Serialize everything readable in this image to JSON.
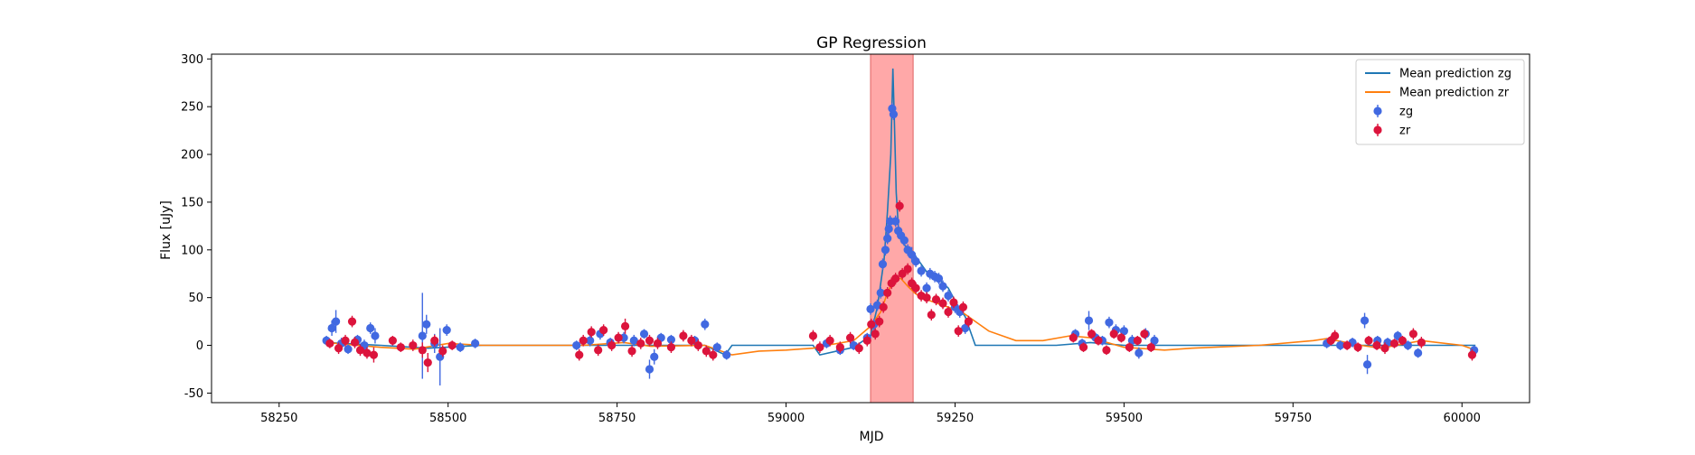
{
  "chart_data": {
    "type": "scatter",
    "title": "GP Regression",
    "xlabel": "MJD",
    "ylabel": "Flux [uJy]",
    "xlim": [
      58150,
      60100
    ],
    "ylim": [
      -60,
      305
    ],
    "xticks": [
      58250,
      58500,
      58750,
      59000,
      59250,
      59500,
      59750,
      60000
    ],
    "yticks": [
      -50,
      0,
      50,
      100,
      150,
      200,
      250,
      300
    ],
    "grid": false,
    "legend_position": "top-right",
    "shaded_region": {
      "x0": 59125,
      "x1": 59188,
      "color": "#ff9999"
    },
    "legend": [
      {
        "label": "Mean prediction zg",
        "kind": "line",
        "color": "#1f77b4"
      },
      {
        "label": "Mean prediction zr",
        "kind": "line",
        "color": "#ff7f0e"
      },
      {
        "label": "zg",
        "kind": "errorbar",
        "color": "#4169e1"
      },
      {
        "label": "zr",
        "kind": "errorbar",
        "color": "#dc143c"
      }
    ],
    "series": [
      {
        "name": "Mean prediction zg",
        "kind": "line",
        "color": "#1f77b4",
        "x": [
          58320,
          58400,
          58470,
          58550,
          58700,
          58800,
          58880,
          58910,
          58920,
          59000,
          59040,
          59050,
          59100,
          59125,
          59135,
          59145,
          59150,
          59155,
          59158,
          59160,
          59163,
          59166,
          59170,
          59175,
          59185,
          59195,
          59210,
          59225,
          59240,
          59255,
          59265,
          59275,
          59280,
          59290,
          59300,
          59400,
          59450,
          59500,
          59550,
          59600,
          59800,
          59900,
          60020
        ],
        "y": [
          3,
          0,
          -3,
          0,
          0,
          0,
          0,
          -10,
          0,
          0,
          0,
          -10,
          -2,
          10,
          40,
          90,
          140,
          200,
          290,
          240,
          160,
          125,
          110,
          105,
          100,
          90,
          75,
          70,
          60,
          40,
          30,
          10,
          0,
          0,
          0,
          0,
          3,
          0,
          0,
          0,
          0,
          0,
          0
        ]
      },
      {
        "name": "Mean prediction zr",
        "kind": "line",
        "color": "#ff7f0e",
        "x": [
          58320,
          58400,
          58450,
          58500,
          58550,
          58700,
          58760,
          58800,
          58880,
          58920,
          58960,
          59000,
          59040,
          59060,
          59100,
          59125,
          59140,
          59150,
          59160,
          59170,
          59180,
          59190,
          59200,
          59220,
          59240,
          59260,
          59280,
          59300,
          59340,
          59380,
          59420,
          59450,
          59500,
          59560,
          59600,
          59700,
          59780,
          59800,
          59850,
          59880,
          59940,
          60000,
          60020
        ],
        "y": [
          3,
          -2,
          -4,
          2,
          0,
          0,
          3,
          -1,
          0,
          -10,
          -6,
          -5,
          -3,
          0,
          5,
          20,
          35,
          55,
          70,
          70,
          62,
          55,
          50,
          45,
          40,
          35,
          25,
          15,
          5,
          5,
          10,
          8,
          -2,
          -5,
          -3,
          0,
          5,
          7,
          0,
          -3,
          5,
          0,
          -5
        ]
      },
      {
        "name": "zg",
        "kind": "errorbar",
        "color": "#4169e1",
        "points": [
          [
            58320,
            5,
            5
          ],
          [
            58328,
            18,
            8
          ],
          [
            58334,
            25,
            12
          ],
          [
            58342,
            2,
            6
          ],
          [
            58352,
            -4,
            5
          ],
          [
            58366,
            6,
            5
          ],
          [
            58376,
            0,
            6
          ],
          [
            58385,
            18,
            6
          ],
          [
            58392,
            10,
            8
          ],
          [
            58462,
            10,
            45
          ],
          [
            58468,
            22,
            10
          ],
          [
            58480,
            2,
            10
          ],
          [
            58488,
            -12,
            30
          ],
          [
            58498,
            16,
            6
          ],
          [
            58518,
            -2,
            5
          ],
          [
            58540,
            2,
            5
          ],
          [
            58690,
            0,
            5
          ],
          [
            58710,
            5,
            6
          ],
          [
            58725,
            12,
            6
          ],
          [
            58740,
            3,
            5
          ],
          [
            58760,
            8,
            6
          ],
          [
            58775,
            5,
            6
          ],
          [
            58790,
            12,
            5
          ],
          [
            58798,
            -25,
            10
          ],
          [
            58805,
            -12,
            8
          ],
          [
            58815,
            8,
            5
          ],
          [
            58830,
            6,
            5
          ],
          [
            58865,
            5,
            5
          ],
          [
            58880,
            22,
            6
          ],
          [
            58898,
            -2,
            5
          ],
          [
            58912,
            -10,
            5
          ],
          [
            59060,
            2,
            5
          ],
          [
            59080,
            -5,
            5
          ],
          [
            59100,
            0,
            5
          ],
          [
            59120,
            8,
            5
          ],
          [
            59125,
            38,
            6
          ],
          [
            59130,
            22,
            6
          ],
          [
            59135,
            42,
            6
          ],
          [
            59140,
            55,
            6
          ],
          [
            59143,
            85,
            6
          ],
          [
            59147,
            100,
            6
          ],
          [
            59150,
            112,
            6
          ],
          [
            59152,
            122,
            6
          ],
          [
            59154,
            130,
            6
          ],
          [
            59157,
            248,
            6
          ],
          [
            59159,
            242,
            6
          ],
          [
            59162,
            130,
            6
          ],
          [
            59166,
            120,
            6
          ],
          [
            59170,
            115,
            6
          ],
          [
            59175,
            110,
            6
          ],
          [
            59180,
            100,
            6
          ],
          [
            59186,
            95,
            8
          ],
          [
            59192,
            88,
            6
          ],
          [
            59200,
            78,
            6
          ],
          [
            59208,
            60,
            6
          ],
          [
            59213,
            75,
            6
          ],
          [
            59220,
            72,
            6
          ],
          [
            59226,
            70,
            6
          ],
          [
            59232,
            62,
            6
          ],
          [
            59240,
            52,
            6
          ],
          [
            59250,
            40,
            6
          ],
          [
            59257,
            35,
            6
          ],
          [
            59265,
            18,
            6
          ],
          [
            59428,
            12,
            5
          ],
          [
            59438,
            2,
            5
          ],
          [
            59448,
            26,
            10
          ],
          [
            59458,
            8,
            5
          ],
          [
            59468,
            5,
            5
          ],
          [
            59478,
            24,
            6
          ],
          [
            59488,
            16,
            6
          ],
          [
            59500,
            15,
            6
          ],
          [
            59512,
            5,
            6
          ],
          [
            59522,
            -8,
            6
          ],
          [
            59532,
            12,
            6
          ],
          [
            59545,
            5,
            6
          ],
          [
            59800,
            2,
            5
          ],
          [
            59820,
            0,
            5
          ],
          [
            59838,
            3,
            5
          ],
          [
            59856,
            26,
            8
          ],
          [
            59860,
            -20,
            10
          ],
          [
            59875,
            5,
            5
          ],
          [
            59890,
            3,
            5
          ],
          [
            59905,
            10,
            5
          ],
          [
            59920,
            0,
            5
          ],
          [
            59935,
            -8,
            5
          ],
          [
            60018,
            -5,
            5
          ]
        ]
      },
      {
        "name": "zr",
        "kind": "errorbar",
        "color": "#dc143c",
        "points": [
          [
            58325,
            2,
            5
          ],
          [
            58338,
            -3,
            6
          ],
          [
            58348,
            5,
            6
          ],
          [
            58358,
            25,
            6
          ],
          [
            58362,
            3,
            6
          ],
          [
            58370,
            -5,
            6
          ],
          [
            58380,
            -8,
            6
          ],
          [
            58390,
            -10,
            8
          ],
          [
            58418,
            5,
            5
          ],
          [
            58430,
            -2,
            5
          ],
          [
            58448,
            0,
            6
          ],
          [
            58462,
            -5,
            8
          ],
          [
            58470,
            -18,
            10
          ],
          [
            58480,
            5,
            6
          ],
          [
            58492,
            -6,
            6
          ],
          [
            58506,
            0,
            5
          ],
          [
            58694,
            -10,
            6
          ],
          [
            58700,
            5,
            6
          ],
          [
            58712,
            14,
            6
          ],
          [
            58722,
            -5,
            6
          ],
          [
            58730,
            16,
            6
          ],
          [
            58742,
            0,
            6
          ],
          [
            58752,
            8,
            6
          ],
          [
            58762,
            20,
            8
          ],
          [
            58772,
            -6,
            6
          ],
          [
            58785,
            2,
            6
          ],
          [
            58798,
            5,
            6
          ],
          [
            58810,
            2,
            6
          ],
          [
            58830,
            -2,
            6
          ],
          [
            58848,
            10,
            6
          ],
          [
            58860,
            5,
            6
          ],
          [
            58870,
            0,
            6
          ],
          [
            58882,
            -6,
            6
          ],
          [
            58892,
            -10,
            6
          ],
          [
            59040,
            10,
            6
          ],
          [
            59050,
            -2,
            6
          ],
          [
            59065,
            5,
            6
          ],
          [
            59080,
            -2,
            6
          ],
          [
            59095,
            8,
            6
          ],
          [
            59108,
            -3,
            6
          ],
          [
            59120,
            5,
            6
          ],
          [
            59126,
            22,
            6
          ],
          [
            59132,
            12,
            6
          ],
          [
            59138,
            25,
            6
          ],
          [
            59144,
            40,
            6
          ],
          [
            59150,
            55,
            6
          ],
          [
            59156,
            65,
            6
          ],
          [
            59162,
            70,
            6
          ],
          [
            59168,
            146,
            6
          ],
          [
            59172,
            75,
            6
          ],
          [
            59180,
            80,
            6
          ],
          [
            59186,
            65,
            6
          ],
          [
            59192,
            60,
            6
          ],
          [
            59200,
            52,
            6
          ],
          [
            59208,
            50,
            6
          ],
          [
            59215,
            32,
            6
          ],
          [
            59222,
            48,
            6
          ],
          [
            59232,
            44,
            6
          ],
          [
            59240,
            35,
            6
          ],
          [
            59248,
            45,
            6
          ],
          [
            59255,
            15,
            6
          ],
          [
            59262,
            40,
            6
          ],
          [
            59270,
            25,
            6
          ],
          [
            59425,
            8,
            5
          ],
          [
            59440,
            -2,
            5
          ],
          [
            59452,
            12,
            5
          ],
          [
            59462,
            5,
            5
          ],
          [
            59474,
            -5,
            5
          ],
          [
            59485,
            12,
            5
          ],
          [
            59496,
            8,
            5
          ],
          [
            59508,
            -2,
            5
          ],
          [
            59520,
            5,
            5
          ],
          [
            59530,
            12,
            5
          ],
          [
            59540,
            -2,
            5
          ],
          [
            59806,
            5,
            5
          ],
          [
            59812,
            10,
            6
          ],
          [
            59830,
            0,
            5
          ],
          [
            59846,
            -2,
            5
          ],
          [
            59862,
            5,
            5
          ],
          [
            59874,
            0,
            5
          ],
          [
            59886,
            -3,
            6
          ],
          [
            59900,
            2,
            5
          ],
          [
            59912,
            5,
            5
          ],
          [
            59928,
            12,
            6
          ],
          [
            59940,
            3,
            6
          ],
          [
            60015,
            -10,
            6
          ]
        ]
      }
    ]
  }
}
